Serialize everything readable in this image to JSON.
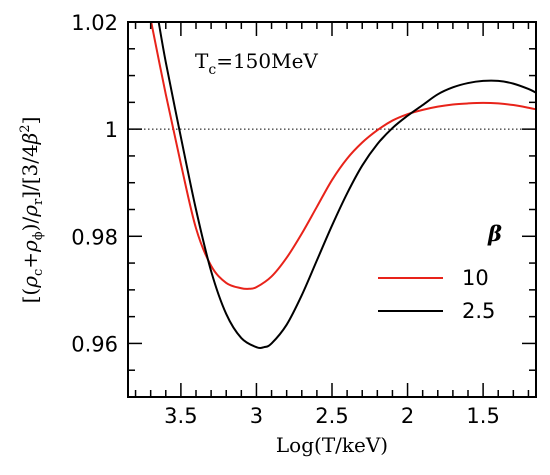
{
  "chart_data": {
    "type": "line",
    "xlabel": "Log(T/keV)",
    "ylabel": {
      "open": "[(",
      "rho1": "ρ",
      "sub1": "c",
      "plus": "+",
      "rho2": "ρ",
      "sub2": "ϕ",
      "mid": ")/",
      "rho3": "ρ",
      "sub3": "r",
      "close": "]/[3/4",
      "beta": "β",
      "sup": "2",
      "end": "]"
    },
    "annotation": {
      "main": "T",
      "sub": "c",
      "rest": "=150MeV"
    },
    "xlim": [
      3.85,
      1.15
    ],
    "ylim": [
      0.95,
      1.02
    ],
    "x_reversed": true,
    "x_ticks": [
      3.5,
      3,
      2.5,
      2,
      1.5
    ],
    "x_tick_labels": [
      "3.5",
      "3",
      "2.5",
      "2",
      "1.5"
    ],
    "y_ticks": [
      0.96,
      0.98,
      1,
      1.02
    ],
    "y_tick_labels": [
      "0.96",
      "0.98",
      "1",
      "1.02"
    ],
    "reference_line": {
      "y": 1,
      "style": "dotted"
    },
    "legend": {
      "title": "β",
      "position": "right"
    },
    "series": [
      {
        "name": "10",
        "color": "#e8231a",
        "x": [
          3.7,
          3.6,
          3.5,
          3.4,
          3.3,
          3.2,
          3.1,
          3.05,
          3.0,
          2.9,
          2.8,
          2.7,
          2.6,
          2.5,
          2.4,
          2.3,
          2.2,
          2.1,
          2.0,
          1.9,
          1.8,
          1.7,
          1.6,
          1.5,
          1.4,
          1.3,
          1.2,
          1.15
        ],
        "y": [
          1.0205,
          1.0065,
          0.9935,
          0.9815,
          0.9745,
          0.9713,
          0.9703,
          0.9702,
          0.9705,
          0.9725,
          0.976,
          0.9805,
          0.9855,
          0.9905,
          0.9945,
          0.9975,
          0.9998,
          1.0016,
          1.0028,
          1.0036,
          1.0042,
          1.0046,
          1.0048,
          1.0049,
          1.0048,
          1.0045,
          1.004,
          1.0037
        ]
      },
      {
        "name": "2.5",
        "color": "#000000",
        "x": [
          3.65,
          3.6,
          3.5,
          3.4,
          3.3,
          3.2,
          3.1,
          3.0,
          2.95,
          2.9,
          2.8,
          2.7,
          2.6,
          2.5,
          2.4,
          2.3,
          2.2,
          2.1,
          2.0,
          1.9,
          1.8,
          1.7,
          1.6,
          1.5,
          1.4,
          1.3,
          1.2,
          1.15
        ],
        "y": [
          1.0205,
          1.0125,
          0.9985,
          0.985,
          0.9735,
          0.9655,
          0.961,
          0.9593,
          0.9593,
          0.96,
          0.9635,
          0.969,
          0.9755,
          0.982,
          0.988,
          0.9932,
          0.9972,
          1.0002,
          1.0025,
          1.0045,
          1.0065,
          1.0078,
          1.0086,
          1.009,
          1.009,
          1.0085,
          1.0075,
          1.0068
        ]
      }
    ]
  }
}
